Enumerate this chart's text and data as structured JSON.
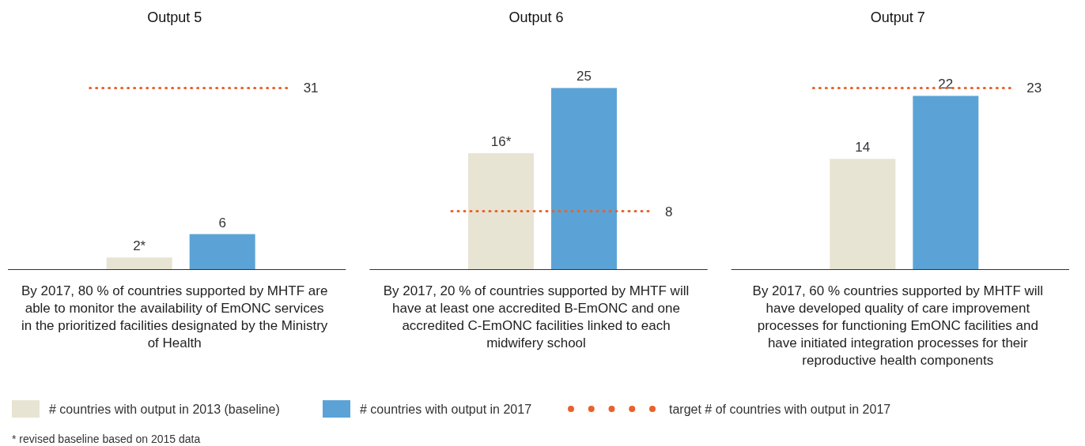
{
  "chart_data": [
    {
      "type": "bar",
      "title": "Output 5",
      "xlabel": "By 2017, 80 % of countries supported by MHTF are able to monitor the availability of EmONC services in the prioritized facilities designated by the Ministry of Health",
      "categories": [
        null
      ],
      "legend": "bottom",
      "data_labels": true,
      "series": [
        {
          "name": "# countries with output in 2013 (baseline)",
          "color": "#e8e4d3",
          "values": [
            2
          ],
          "value_labels": [
            "2*"
          ]
        },
        {
          "name": "# countries with output in 2017",
          "color": "#5ba3d6",
          "values": [
            6
          ]
        }
      ],
      "ref_lines": [
        {
          "axis": "y",
          "value": 31,
          "label": "31",
          "color": "#e8622a",
          "line_style": "dotted"
        }
      ],
      "annotations": [
        "target # of countries with output in 2017",
        "* revised baseline based on 2015 data"
      ]
    },
    {
      "type": "bar",
      "title": "Output 6",
      "xlabel": "By 2017, 20 % of countries supported by MHTF will have at least one accredited B-EmONC and one accredited C-EmONC facilities linked to each midwifery school",
      "categories": [
        null
      ],
      "data_labels": true,
      "series": [
        {
          "color": "#e8e4d3",
          "values": [
            16
          ],
          "value_labels": [
            "16*"
          ]
        },
        {
          "color": "#5ba3d6",
          "values": [
            25
          ]
        }
      ],
      "ref_lines": [
        {
          "axis": "y",
          "value": 8,
          "label": "8",
          "color": "#e8622a",
          "line_style": "dotted"
        }
      ]
    },
    {
      "type": "bar",
      "title": "Output 7",
      "xlabel": "By 2017, 60 % countries supported by MHTF will have developed quality of care improvement processes for functioning EmONC facilities and have initiated integration processes for their reproductive health components",
      "categories": [
        null
      ],
      "data_labels": true,
      "series": [
        {
          "color": "#e8e4d3",
          "values": [
            14
          ]
        },
        {
          "color": "#5ba3d6",
          "values": [
            22
          ]
        }
      ],
      "ref_lines": [
        {
          "axis": "y",
          "value": 23,
          "label": "23",
          "color": "#e8622a",
          "line_style": "dotted"
        }
      ]
    }
  ]
}
